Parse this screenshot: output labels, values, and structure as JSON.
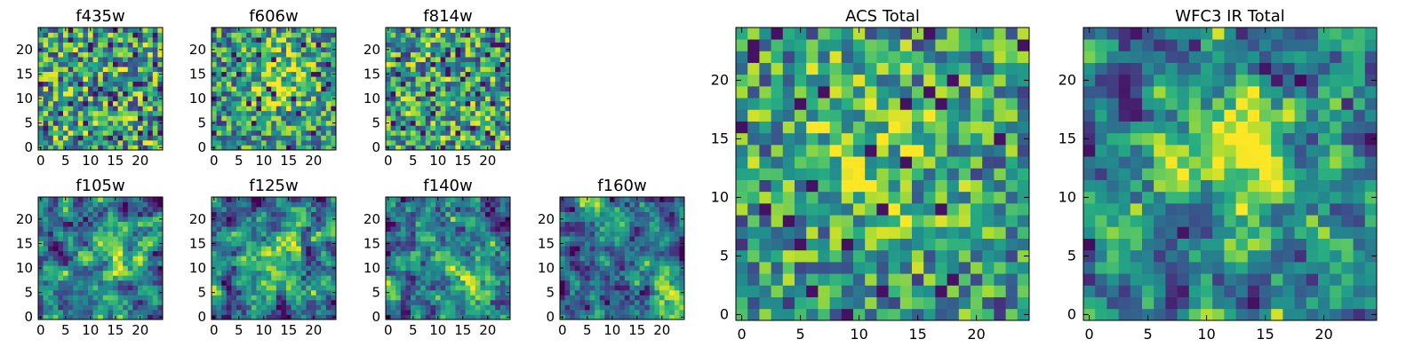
{
  "figure": {
    "colormap": "viridis",
    "colors": {
      "cmap_low": "#440154",
      "cmap_mid": "#21908d",
      "cmap_high": "#fde725",
      "axes": "#000000",
      "background": "#ffffff"
    }
  },
  "chart_data": [
    {
      "type": "heatmap",
      "title": "f435w",
      "grid_size": 25,
      "xticks": [
        0,
        5,
        10,
        15,
        20
      ],
      "yticks": [
        0,
        5,
        10,
        15,
        20
      ],
      "xlim": [
        0,
        24
      ],
      "ylim": [
        0,
        24
      ],
      "pattern": "noise",
      "peak": [
        12,
        12
      ]
    },
    {
      "type": "heatmap",
      "title": "f606w",
      "grid_size": 25,
      "xticks": [
        0,
        5,
        10,
        15,
        20
      ],
      "yticks": [
        0,
        5,
        10,
        15,
        20
      ],
      "xlim": [
        0,
        24
      ],
      "ylim": [
        0,
        24
      ],
      "pattern": "noise-soft-center",
      "peak": [
        13,
        14
      ]
    },
    {
      "type": "heatmap",
      "title": "f814w",
      "grid_size": 25,
      "xticks": [
        0,
        5,
        10,
        15,
        20
      ],
      "yticks": [
        0,
        5,
        10,
        15,
        20
      ],
      "xlim": [
        0,
        24
      ],
      "ylim": [
        0,
        24
      ],
      "pattern": "noise",
      "peak": [
        12,
        12
      ]
    },
    {
      "type": "heatmap",
      "title": "f105w",
      "grid_size": 25,
      "xticks": [
        0,
        5,
        10,
        15,
        20
      ],
      "yticks": [
        0,
        5,
        10,
        15,
        20
      ],
      "xlim": [
        0,
        24
      ],
      "ylim": [
        0,
        24
      ],
      "pattern": "smooth",
      "peak": [
        14,
        11
      ]
    },
    {
      "type": "heatmap",
      "title": "f125w",
      "grid_size": 25,
      "xticks": [
        0,
        5,
        10,
        15,
        20
      ],
      "yticks": [
        0,
        5,
        10,
        15,
        20
      ],
      "xlim": [
        0,
        24
      ],
      "ylim": [
        0,
        24
      ],
      "pattern": "smooth",
      "peak": [
        12,
        12
      ]
    },
    {
      "type": "heatmap",
      "title": "f140w",
      "grid_size": 25,
      "xticks": [
        0,
        5,
        10,
        15,
        20
      ],
      "yticks": [
        0,
        5,
        10,
        15,
        20
      ],
      "xlim": [
        0,
        24
      ],
      "ylim": [
        0,
        24
      ],
      "pattern": "smooth",
      "peak": [
        15,
        8
      ]
    },
    {
      "type": "heatmap",
      "title": "f160w",
      "grid_size": 25,
      "xticks": [
        0,
        5,
        10,
        15,
        20
      ],
      "yticks": [
        0,
        5,
        10,
        15,
        20
      ],
      "xlim": [
        0,
        24
      ],
      "ylim": [
        0,
        24
      ],
      "pattern": "diagonal",
      "peak": [
        20,
        2
      ]
    },
    {
      "type": "heatmap",
      "title": "ACS Total",
      "grid_size": 25,
      "xticks": [
        0,
        5,
        10,
        15,
        20
      ],
      "yticks": [
        0,
        5,
        10,
        15,
        20
      ],
      "xlim": [
        0,
        24
      ],
      "ylim": [
        0,
        24
      ],
      "pattern": "noise-soft-center",
      "peak": [
        11,
        14
      ]
    },
    {
      "type": "heatmap",
      "title": "WFC3 IR Total",
      "grid_size": 25,
      "xticks": [
        0,
        5,
        10,
        15,
        20
      ],
      "yticks": [
        0,
        5,
        10,
        15,
        20
      ],
      "xlim": [
        0,
        24
      ],
      "ylim": [
        0,
        24
      ],
      "pattern": "smooth-peak",
      "peak": [
        12,
        13
      ]
    }
  ]
}
